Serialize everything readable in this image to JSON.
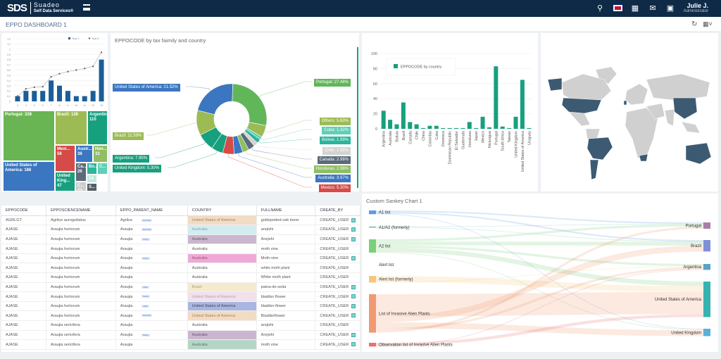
{
  "header": {
    "logo_mark": "SDS",
    "brand": "Suadeo",
    "brand_sub": "Self Data Services®",
    "user_name": "Julie J.",
    "user_role": "Administrator",
    "icons": [
      "search-icon",
      "uk-flag-icon",
      "apps-grid-icon",
      "mail-icon",
      "calendar-icon"
    ]
  },
  "dashboard": {
    "title": "EPPO DASHBOARD 1",
    "refresh_icon": "refresh-icon",
    "layout_icon": "grid-layout-icon"
  },
  "combo_chart": {
    "type": "bar",
    "categories": [
      "3",
      "4",
      "5",
      "6",
      "7",
      "8",
      "9",
      "10",
      "11",
      "12",
      "13"
    ],
    "series": [
      {
        "name": "Taux 1",
        "kind": "bar",
        "values": [
          0.1,
          0.2,
          0.2,
          0.2,
          0.4,
          0.3,
          0.2,
          0.1,
          0.1,
          0.2,
          0.8
        ]
      },
      {
        "name": "Taux 2",
        "kind": "line",
        "values": [
          0.1,
          0.24,
          0.27,
          0.28,
          0.47,
          0.53,
          0.57,
          0.6,
          0.63,
          0.67,
          0.94
        ]
      }
    ],
    "yticks": [
      "0",
      "0,1",
      "0,2",
      "0,3",
      "0,4",
      "0,5",
      "0,6",
      "0,7",
      "0,8",
      "0,9",
      "1",
      "1,1",
      "1,2"
    ],
    "ylim": [
      0,
      1.2
    ],
    "legend": "top-right",
    "colors": [
      "#1a5e99",
      "#666666"
    ]
  },
  "treemap": {
    "items": [
      {
        "label": "Portugal: 328",
        "color": "#6ab553"
      },
      {
        "label": "United States of America: 186",
        "color": "#3b76c0"
      },
      {
        "label": "Brazil: 126",
        "color": "#9dbb55"
      },
      {
        "label": "Argentina: 110",
        "color": "#17a07e"
      },
      {
        "label": "Mexi... 58",
        "color": "#d54b47"
      },
      {
        "label": "Austr... 38",
        "color": "#3b76c0"
      },
      {
        "label": "Hon... 33",
        "color": "#8fbe63"
      },
      {
        "label": "United King... 47",
        "color": "#17a07e"
      },
      {
        "label": "Ca... 26",
        "color": "#5b6b7b"
      },
      {
        "label": "Bo...",
        "color": "#2bb59a"
      },
      {
        "label": "C...",
        "color": "#5fcfb5"
      },
      {
        "label": "C... 23",
        "color": "#cccccc"
      },
      {
        "label": "14",
        "color": "#bfe9e0"
      },
      {
        "label": "S...",
        "color": "#555d66"
      }
    ]
  },
  "donut_chart": {
    "title": "EPPOCODE by tax faimily and country",
    "type": "pie",
    "slices": [
      {
        "label": "Portugal: 27.48%",
        "name": "Portugal",
        "value": 27.48,
        "color": "#62b65a"
      },
      {
        "label": "Others: 5.63%",
        "name": "Others",
        "value": 5.63,
        "color": "#9dbb55"
      },
      {
        "label": "Cuba: 1.32%",
        "name": "Cuba",
        "value": 1.32,
        "color": "#5fcfb5"
      },
      {
        "label": "Bolivia: 1.99%",
        "name": "Bolivia",
        "value": 1.99,
        "color": "#2bb59a"
      },
      {
        "label": "Chile: 1.99%",
        "name": "Chile",
        "value": 1.99,
        "color": "#d3d3d3"
      },
      {
        "label": "Canada: 2.98%",
        "name": "Canada",
        "value": 2.98,
        "color": "#5b6b7b"
      },
      {
        "label": "Honduras: 2.98%",
        "name": "Honduras",
        "value": 2.98,
        "color": "#8fbe63"
      },
      {
        "label": "Australia: 3.97%",
        "name": "Australia",
        "value": 3.97,
        "color": "#3b76c0"
      },
      {
        "label": "Mexico: 5.30%",
        "name": "Mexico",
        "value": 5.3,
        "color": "#d54b47"
      },
      {
        "label": "United Kingdom: 5.30%",
        "name": "United Kingdom",
        "value": 5.3,
        "color": "#17a07e"
      },
      {
        "label": "Argentina: 7.95%",
        "name": "Argentina",
        "value": 7.95,
        "color": "#17a07e"
      },
      {
        "label": "Brazil: 11.59%",
        "name": "Brazil",
        "value": 11.59,
        "color": "#9dbb55"
      },
      {
        "label": "United States of America: 21.52%",
        "name": "United States of America",
        "value": 21.52,
        "color": "#3b76c0"
      }
    ]
  },
  "chart_data": {
    "type": "bar",
    "title": "",
    "series": [
      {
        "name": "EPPOCODE by country",
        "values": [
          24,
          12,
          6,
          35,
          9,
          6,
          1,
          4,
          4,
          1,
          1,
          1,
          1,
          9,
          1,
          16,
          2,
          83,
          3,
          1,
          16,
          65,
          1
        ]
      }
    ],
    "categories": [
      "Argentina",
      "Australia",
      "Bolivia",
      "Brazil",
      "Canada",
      "Chile",
      "China",
      "Colombia",
      "Cuba",
      "Dominica",
      "Dominican Republic",
      "El Salvador",
      "Guatemala",
      "Honduras",
      "Japan",
      "Mexico",
      "Nicaragua",
      "Portugal",
      "South Africa",
      "Taiwan",
      "United Kingdom",
      "United States of America",
      "Uruguay"
    ],
    "yticks": [
      "0",
      "20",
      "40",
      "60",
      "80",
      "100"
    ],
    "ylim": [
      0,
      100
    ],
    "grid": true,
    "legend": "top-left",
    "color": "#17a07e"
  },
  "map": {
    "highlight_color": "#3d5a73",
    "land_color": "#d0d0d0"
  },
  "table": {
    "columns": [
      "EPPOCODE",
      "EPPOSCIENCENAME",
      "EPPO_PARENT_NAME",
      "COUNTRY",
      "FULLNAME",
      "CREATE_BY"
    ],
    "rows": [
      {
        "code": "AGRLGT",
        "sci": "Agrilus auroguttatus",
        "parent": "Agrilus",
        "badge": "Decimal",
        "country": "United States of America",
        "bg": "#f3dcc4",
        "fg": "#a08060",
        "full": "goldspotted oak borer",
        "by": "CREATE_USER",
        "cb": true
      },
      {
        "code": "AJASE",
        "sci": "Araujia hortorum",
        "parent": "Araujia",
        "badge": "Decimal",
        "country": "Australia",
        "bg": "#d2ecf2",
        "fg": "#7aa6b0",
        "full": "arejishi",
        "by": "CREATE_USER",
        "cb": true
      },
      {
        "code": "AJASE",
        "sci": "Araujia hortorum",
        "parent": "Araujia",
        "badge": "String",
        "country": "Australia",
        "bg": "#cbb6cf",
        "fg": "#665566",
        "full": "Arejishi",
        "by": "CREATE_USER",
        "cb": true
      },
      {
        "code": "AJASE",
        "sci": "Araujia hortorum",
        "parent": "Araujia",
        "badge": "",
        "country": "Australia",
        "bg": "",
        "fg": "#555",
        "full": "moth vine",
        "by": "CREATE_USER",
        "cb": false
      },
      {
        "code": "AJASE",
        "sci": "Araujia hortorum",
        "parent": "Araujia",
        "badge": "String",
        "country": "Australia",
        "bg": "#efa9d8",
        "fg": "#955",
        "full": "Moth-vine",
        "by": "CREATE_USER",
        "cb": true
      },
      {
        "code": "AJASE",
        "sci": "Araujia hortorum",
        "parent": "Araujia",
        "badge": "",
        "country": "Australia",
        "bg": "",
        "fg": "#555",
        "full": "white moth plant",
        "by": "CREATE_USER",
        "cb": false
      },
      {
        "code": "AJASE",
        "sci": "Araujia hortorum",
        "parent": "Araujia",
        "badge": "",
        "country": "Australia",
        "bg": "",
        "fg": "#555",
        "full": "White moth plant",
        "by": "CREATE_USER",
        "cb": false
      },
      {
        "code": "AJASE",
        "sci": "Araujia hortorum",
        "parent": "Araujia",
        "badge": "Int32",
        "country": "Brazil",
        "bg": "#f3ead2",
        "fg": "#b0a070",
        "full": "paina-de-seda",
        "by": "CREATE_USER",
        "cb": true
      },
      {
        "code": "AJASE",
        "sci": "Araujia hortorum",
        "parent": "Araujia",
        "badge": "String",
        "country": "United States of America",
        "bg": "#f1e1ec",
        "fg": "#b0a0b0",
        "full": "bladder flower",
        "by": "CREATE_USER",
        "cb": true
      },
      {
        "code": "AJASE",
        "sci": "Araujia hortorum",
        "parent": "Araujia",
        "badge": "Int32",
        "country": "United States of America",
        "bg": "#a9b6e2",
        "fg": "#445",
        "full": "bladder-flower",
        "by": "CREATE_USER",
        "cb": true
      },
      {
        "code": "AJASE",
        "sci": "Araujia hortorum",
        "parent": "Araujia",
        "badge": "Decimal",
        "country": "United States of America",
        "bg": "#f3dcc4",
        "fg": "#a08060",
        "full": "Bladderflower",
        "by": "CREATE_USER",
        "cb": true
      },
      {
        "code": "AJASE",
        "sci": "Araujia sericifera",
        "parent": "Araujia",
        "badge": "",
        "country": "Australia",
        "bg": "",
        "fg": "#555",
        "full": "arejishi",
        "by": "CREATE_USER",
        "cb": false
      },
      {
        "code": "AJASE",
        "sci": "Araujia sericifera",
        "parent": "Araujia",
        "badge": "String",
        "country": "Australia",
        "bg": "#cbb6cf",
        "fg": "#665566",
        "full": "Arejishi",
        "by": "CREATE_USER",
        "cb": true
      },
      {
        "code": "AJASE",
        "sci": "Araujia sericifera",
        "parent": "Araujia",
        "badge": "",
        "country": "Australia",
        "bg": "#b5d6c6",
        "fg": "#557766",
        "full": "moth vine",
        "by": "CREATE_USER",
        "cb": true
      }
    ]
  },
  "sankey": {
    "title": "Custom Sankey Chart 1",
    "sources": [
      {
        "name": "A1 list",
        "color": "#5b9be0"
      },
      {
        "name": "A1/A2 (formerly)",
        "color": "#3fb59a"
      },
      {
        "name": "A2 list",
        "color": "#7ccf7a"
      },
      {
        "name": "Alert list",
        "color": "#cccccc"
      },
      {
        "name": "Alert list (formerly)",
        "color": "#f7c77a"
      },
      {
        "name": "List of Invasive Alien Plants",
        "color": "#f09a74"
      },
      {
        "name": "Observation list of Invasive Alien Plants",
        "color": "#e87070"
      }
    ],
    "targets": [
      {
        "name": "Portugal",
        "color": "#a97ea6"
      },
      {
        "name": "Brazil",
        "color": "#7f90d8"
      },
      {
        "name": "Argentina",
        "color": "#5aa2c8"
      },
      {
        "name": "United States of America",
        "color": "#36b3b0"
      },
      {
        "name": "United Kingdom",
        "color": "#5ab0d8"
      }
    ],
    "links": [
      [
        0,
        0,
        2
      ],
      [
        0,
        1,
        2
      ],
      [
        0,
        4,
        1
      ],
      [
        1,
        0,
        0.5
      ],
      [
        1,
        1,
        0.5
      ],
      [
        2,
        0,
        3
      ],
      [
        2,
        1,
        5
      ],
      [
        2,
        2,
        3
      ],
      [
        2,
        3,
        6
      ],
      [
        2,
        4,
        1
      ],
      [
        4,
        3,
        8
      ],
      [
        4,
        2,
        1
      ],
      [
        5,
        3,
        30
      ],
      [
        5,
        1,
        8
      ],
      [
        5,
        4,
        8
      ],
      [
        5,
        2,
        3
      ],
      [
        5,
        0,
        3
      ],
      [
        6,
        3,
        4
      ],
      [
        6,
        2,
        1
      ]
    ]
  }
}
